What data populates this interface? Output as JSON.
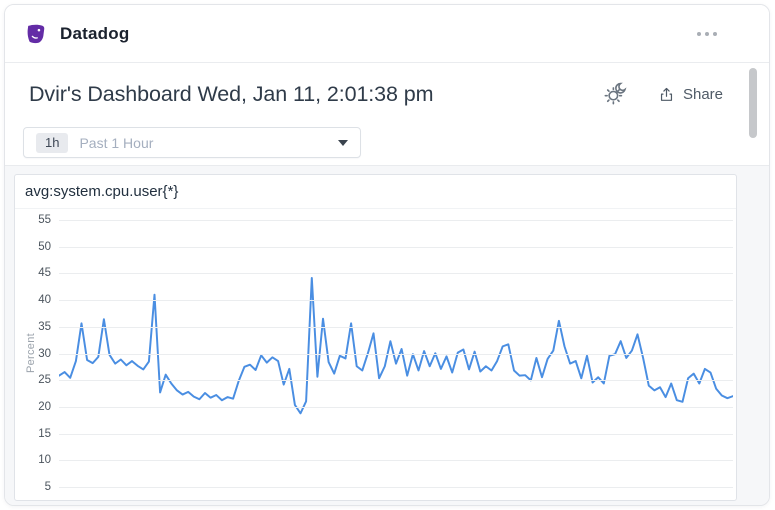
{
  "app_header": {
    "name": "Datadog",
    "menu_icon": "ellipsis-horizontal",
    "logo_icon": "datadog-dog",
    "logo_color": "#632CA6"
  },
  "dashboard_header": {
    "title": "Dvir's Dashboard Wed, Jan 11, 2:01:38 pm",
    "theme_toggle_icon": "sun-moon",
    "share": {
      "icon": "upload-arrow",
      "label": "Share"
    }
  },
  "time_picker": {
    "badge": "1h",
    "label": "Past 1 Hour",
    "dropdown_icon": "caret-down"
  },
  "graph_panel": {
    "query_title": "avg:system.cpu.user{*}"
  },
  "chart_data": {
    "type": "line",
    "title": "avg:system.cpu.user{*}",
    "ylabel": "Percent",
    "xlabel": "",
    "x_range": "past 1 hour",
    "sample_interval_minutes": 0.5,
    "yticks": [
      55,
      50,
      45,
      40,
      35,
      30,
      25,
      20,
      15,
      10,
      5
    ],
    "ylim_visible": [
      5,
      55
    ],
    "grid": true,
    "legend": false,
    "x_tick_labels_visible": false,
    "line_color": "#4a8ee2",
    "values": [
      25.2,
      25.9,
      24.8,
      28.0,
      35.2,
      28.2,
      27.6,
      28.8,
      36.0,
      29.2,
      27.5,
      28.3,
      27.2,
      28.0,
      27.1,
      26.4,
      27.9,
      40.7,
      22.0,
      25.4,
      23.7,
      22.4,
      21.6,
      22.1,
      21.2,
      20.7,
      21.9,
      21.0,
      21.5,
      20.5,
      21.1,
      20.8,
      24.2,
      26.9,
      27.3,
      26.3,
      29.1,
      27.7,
      28.7,
      28.0,
      23.5,
      26.5,
      19.6,
      18.0,
      20.3,
      43.9,
      25.0,
      36.1,
      27.8,
      25.6,
      29.0,
      28.5,
      35.2,
      27.0,
      26.2,
      29.5,
      33.3,
      24.7,
      27.0,
      31.8,
      27.5,
      30.3,
      25.2,
      29.3,
      26.2,
      29.9,
      27.0,
      29.5,
      26.5,
      28.9,
      25.8,
      29.6,
      30.2,
      26.4,
      29.8,
      26.0,
      27.0,
      26.2,
      28.0,
      30.8,
      31.2,
      26.2,
      25.2,
      25.3,
      24.3,
      28.6,
      24.9,
      28.4,
      30.0,
      35.7,
      30.8,
      27.5,
      28.0,
      24.7,
      29.0,
      23.9,
      24.9,
      23.7,
      29.0,
      29.3,
      31.8,
      28.6,
      30.0,
      33.1,
      28.6,
      23.3,
      22.4,
      23.0,
      21.1,
      23.7,
      20.5,
      20.2,
      24.7,
      25.6,
      23.7,
      26.5,
      25.8,
      22.7,
      21.4,
      20.9,
      21.3
    ]
  },
  "colors": {
    "brand_purple": "#632CA6",
    "line_blue": "#4a8ee2",
    "title_text": "#2f3b49",
    "muted_text": "#a5afbf",
    "grid_line": "#ebedef",
    "panel_bg": "#f6f7f9"
  }
}
